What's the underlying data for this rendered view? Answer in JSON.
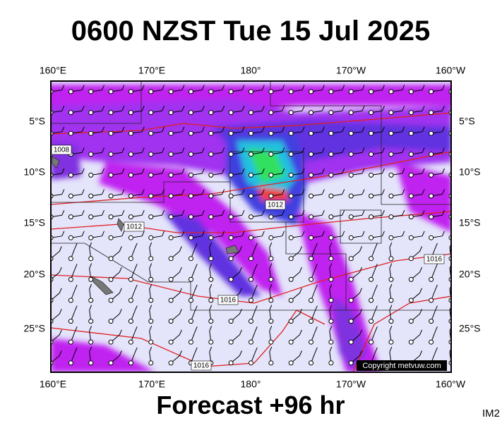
{
  "title": "0600 NZST Tue 15 Jul 2025",
  "top_labels": [
    "160°E",
    "170°E",
    "180°",
    "170°W",
    "160°W"
  ],
  "bottom_labels": [
    "160°E",
    "170°E",
    "180°",
    "170°W",
    "160°W"
  ],
  "left_labels": [
    "5°S",
    "10°S",
    "15°S",
    "20°S",
    "25°S"
  ],
  "right_labels": [
    "5°S",
    "10°S",
    "15°S",
    "20°S",
    "25°S"
  ],
  "isobar_labels": [
    "1008",
    "1012",
    "1012",
    "1016",
    "1016",
    "1016"
  ],
  "copyright": "Copyright metvuw.com",
  "footer": "Forecast +96 hr",
  "code": "IM2"
}
